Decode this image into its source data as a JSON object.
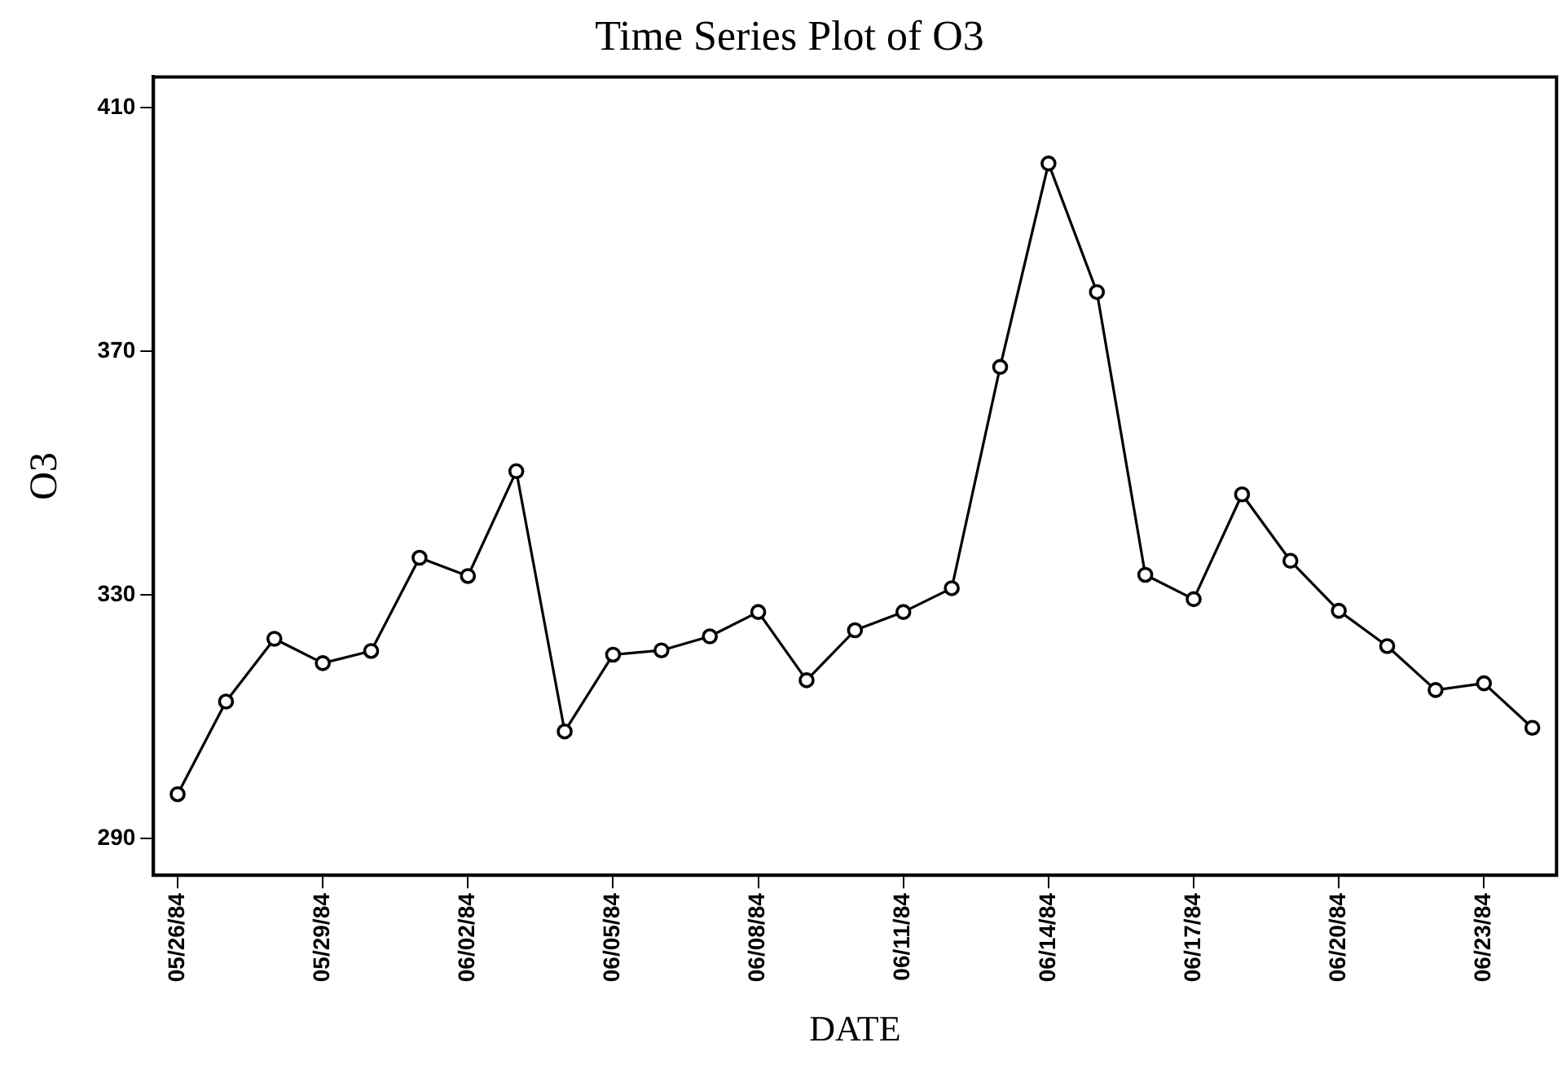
{
  "chart_data": {
    "type": "line",
    "title": "Time Series Plot of O3",
    "xlabel": "DATE",
    "ylabel": "O3",
    "categories": [
      "05/26/84",
      null,
      null,
      "05/29/84",
      null,
      null,
      "06/02/84",
      null,
      null,
      "06/05/84",
      null,
      null,
      "06/08/84",
      null,
      null,
      "06/11/84",
      null,
      null,
      "06/14/84",
      null,
      null,
      "06/17/84",
      null,
      null,
      "06/20/84",
      null,
      null,
      "06/23/84",
      null
    ],
    "series": [
      {
        "color": "#000000",
        "values": [
          297.3,
          312.5,
          322.8,
          318.8,
          320.8,
          336.1,
          333.1,
          350.3,
          307.6,
          320.2,
          320.9,
          323.2,
          327.2,
          316.0,
          324.2,
          327.2,
          331.1,
          367.4,
          400.8,
          379.7,
          333.3,
          329.3,
          346.5,
          335.6,
          327.4,
          321.6,
          314.4,
          315.5,
          308.2
        ]
      }
    ],
    "ylim": [
      284,
      415
    ],
    "yticks": [
      290,
      330,
      370,
      410
    ],
    "grid": false,
    "legend": false,
    "marker": "circle",
    "line_style": "solid"
  }
}
